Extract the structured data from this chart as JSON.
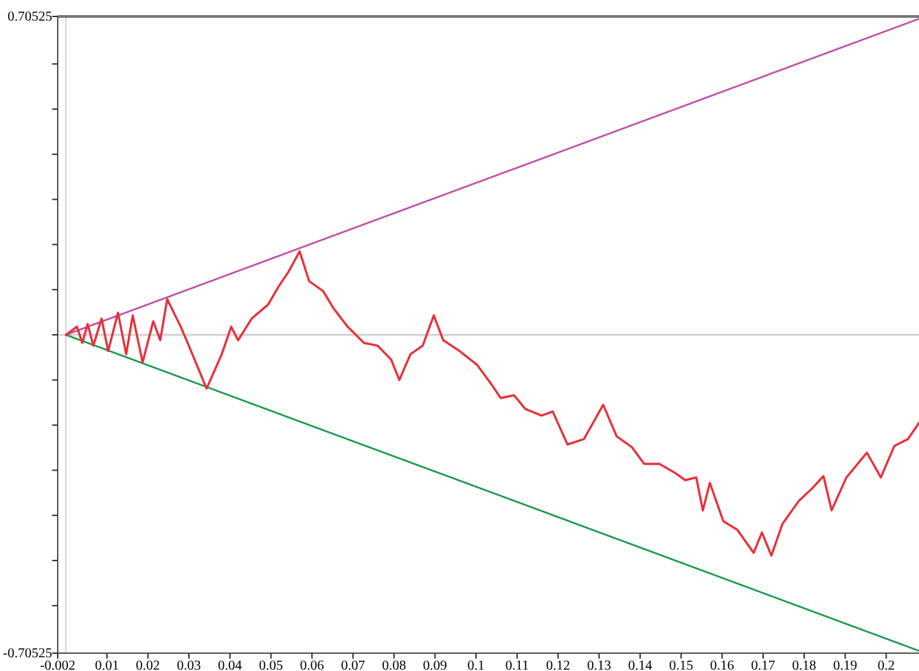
{
  "chart_data": {
    "type": "line",
    "xlim": [
      -0.002,
      0.208
    ],
    "ylim": [
      -0.70525,
      0.70525
    ],
    "xticks": [
      -0.002,
      0.01,
      0.02,
      0.03,
      0.04,
      0.05,
      0.06,
      0.07,
      0.08,
      0.09,
      0.1,
      0.11,
      0.12,
      0.13,
      0.14,
      0.15,
      0.16,
      0.17,
      0.18,
      0.19,
      0.2
    ],
    "yticks": [
      -0.70525,
      {
        "value": -0.6,
        "label": null
      },
      {
        "value": -0.5,
        "label": null
      },
      {
        "value": -0.4,
        "label": null
      },
      {
        "value": -0.3,
        "label": null
      },
      {
        "value": -0.2,
        "label": null
      },
      {
        "value": -0.1,
        "label": null
      },
      {
        "value": 0,
        "label": null
      },
      {
        "value": 0.1,
        "label": null
      },
      {
        "value": 0.2,
        "label": null
      },
      {
        "value": 0.3,
        "label": null
      },
      {
        "value": 0.4,
        "label": null
      },
      {
        "value": 0.5,
        "label": null
      },
      {
        "value": 0.6,
        "label": null
      },
      0.70525
    ],
    "grid": false,
    "marker": "none",
    "line_style": "solid",
    "ref_lines": [
      {
        "axis": "y",
        "value": 0,
        "color": "#cccccc"
      },
      {
        "axis": "x",
        "value": 0,
        "color": "#dadada"
      }
    ],
    "series": [
      {
        "color": "#c04fa8",
        "x": [
          0,
          0.208
        ],
        "values": [
          0,
          0.7
        ]
      },
      {
        "color": "#1a9a50",
        "x": [
          0,
          0.208
        ],
        "values": [
          0,
          -0.7
        ]
      },
      {
        "color": "#e8303a",
        "x": [
          0,
          0.0027,
          0.004,
          0.0053,
          0.0067,
          0.0087,
          0.0103,
          0.0127,
          0.0147,
          0.0163,
          0.0187,
          0.0213,
          0.023,
          0.0247,
          0.028,
          0.0297,
          0.0343,
          0.038,
          0.0403,
          0.042,
          0.0453,
          0.0493,
          0.052,
          0.0543,
          0.057,
          0.0593,
          0.0627,
          0.0653,
          0.0687,
          0.0727,
          0.076,
          0.0793,
          0.0813,
          0.084,
          0.087,
          0.0897,
          0.092,
          0.096,
          0.1003,
          0.1037,
          0.106,
          0.1093,
          0.112,
          0.116,
          0.1187,
          0.1223,
          0.1263,
          0.131,
          0.1343,
          0.138,
          0.141,
          0.1447,
          0.1487,
          0.151,
          0.1537,
          0.1553,
          0.157,
          0.1603,
          0.1637,
          0.1677,
          0.1697,
          0.172,
          0.1747,
          0.1787,
          0.182,
          0.1847,
          0.1867,
          0.1903,
          0.1953,
          0.1987,
          0.202,
          0.2053,
          0.208
        ],
        "values": [
          0,
          0.018,
          -0.018,
          0.024,
          -0.024,
          0.036,
          -0.036,
          0.049,
          -0.043,
          0.043,
          -0.061,
          0.03,
          -0.012,
          0.079,
          0.018,
          -0.018,
          -0.119,
          -0.043,
          0.018,
          -0.012,
          0.036,
          0.067,
          0.109,
          0.14,
          0.185,
          0.119,
          0.097,
          0.058,
          0.018,
          -0.018,
          -0.024,
          -0.055,
          -0.1,
          -0.043,
          -0.024,
          0.043,
          -0.012,
          -0.036,
          -0.067,
          -0.109,
          -0.14,
          -0.134,
          -0.164,
          -0.179,
          -0.17,
          -0.243,
          -0.231,
          -0.155,
          -0.225,
          -0.249,
          -0.286,
          -0.286,
          -0.307,
          -0.322,
          -0.316,
          -0.389,
          -0.328,
          -0.413,
          -0.432,
          -0.483,
          -0.438,
          -0.489,
          -0.419,
          -0.368,
          -0.34,
          -0.313,
          -0.389,
          -0.316,
          -0.261,
          -0.316,
          -0.246,
          -0.231,
          -0.195
        ]
      }
    ]
  }
}
